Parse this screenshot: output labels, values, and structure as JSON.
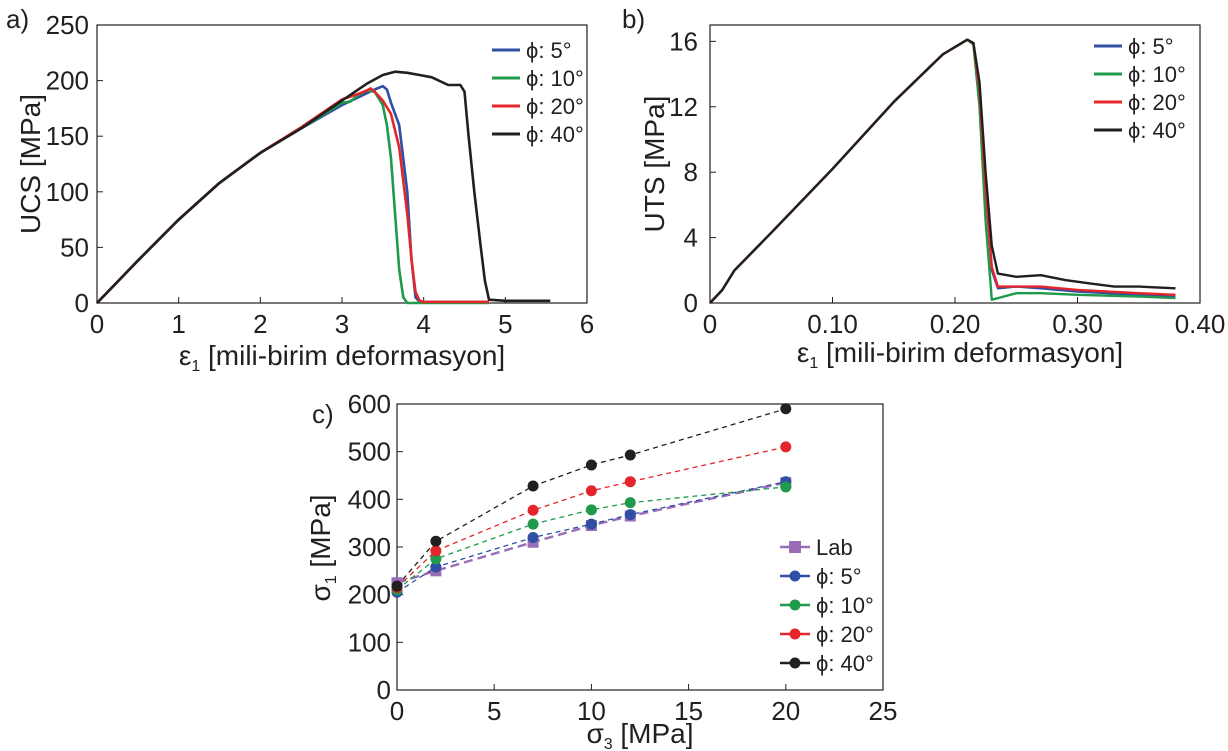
{
  "colors": {
    "phi5": "#2e4fa3",
    "phi10": "#1f9a4a",
    "phi20": "#e4262b",
    "phi40": "#231f20",
    "lab": "#9b6cb8"
  },
  "chart_data": [
    {
      "panel": "a)",
      "type": "line",
      "xlabel_pre": "ε",
      "xlabel_sub": "1",
      "xlabel_post": " [mili-birim deformasyon]",
      "ylabel": "UCS [MPa]",
      "xlim": [
        0,
        6
      ],
      "ylim": [
        0,
        250
      ],
      "xticks": [
        0,
        1,
        2,
        3,
        4,
        5,
        6
      ],
      "yticks": [
        0,
        50,
        100,
        150,
        200,
        250
      ],
      "legend_placement": "top-right",
      "series": [
        {
          "name": "ϕ: 5°",
          "color": "#2e4fa3",
          "x": [
            0,
            0.5,
            1,
            1.5,
            2,
            2.5,
            3,
            3.2,
            3.4,
            3.5,
            3.55,
            3.6,
            3.7,
            3.8,
            3.85,
            3.9,
            3.95,
            4.0,
            4.8
          ],
          "y": [
            0,
            38,
            75,
            108,
            135,
            157,
            178,
            185,
            192,
            195,
            192,
            180,
            160,
            100,
            40,
            5,
            1,
            1,
            1
          ]
        },
        {
          "name": "ϕ: 10°",
          "color": "#1f9a4a",
          "x": [
            0,
            0.5,
            1,
            1.5,
            2,
            2.5,
            3,
            3.1,
            3.2,
            3.3,
            3.4,
            3.5,
            3.55,
            3.6,
            3.65,
            3.7,
            3.75,
            3.8,
            4.8
          ],
          "y": [
            0,
            38,
            75,
            108,
            135,
            157,
            180,
            181,
            187,
            191,
            190,
            178,
            160,
            130,
            80,
            30,
            5,
            0,
            0
          ]
        },
        {
          "name": "ϕ: 20°",
          "color": "#e4262b",
          "x": [
            0,
            0.5,
            1,
            1.5,
            2,
            2.5,
            3,
            3.2,
            3.3,
            3.35,
            3.4,
            3.5,
            3.6,
            3.7,
            3.8,
            3.85,
            3.9,
            3.95,
            4.0,
            4.8
          ],
          "y": [
            0,
            38,
            75,
            108,
            135,
            158,
            183,
            188,
            191,
            193,
            190,
            182,
            170,
            140,
            80,
            40,
            10,
            2,
            1,
            1
          ]
        },
        {
          "name": "ϕ: 40°",
          "color": "#231f20",
          "x": [
            0,
            0.5,
            1,
            1.5,
            2,
            2.5,
            3,
            3.3,
            3.5,
            3.65,
            3.8,
            3.95,
            4.1,
            4.3,
            4.45,
            4.5,
            4.55,
            4.62,
            4.7,
            4.75,
            4.8,
            5.0,
            5.55
          ],
          "y": [
            0,
            38,
            75,
            108,
            135,
            157,
            182,
            197,
            205,
            208,
            207,
            205,
            203,
            196,
            196,
            190,
            150,
            100,
            50,
            20,
            3,
            2,
            2
          ]
        }
      ]
    },
    {
      "panel": "b)",
      "type": "line",
      "xlabel_pre": "ε",
      "xlabel_sub": "1",
      "xlabel_post": " [mili-birim deformasyon]",
      "ylabel": "UTS [MPa]",
      "xlim": [
        0,
        0.4
      ],
      "ylim": [
        0,
        17
      ],
      "xticks": [
        0,
        0.1,
        0.2,
        0.3,
        0.4
      ],
      "xticklabels": [
        "0",
        "0.10",
        "0.20",
        "0.30",
        "0.40"
      ],
      "yticks": [
        0,
        4,
        8,
        12,
        16
      ],
      "legend_placement": "top-right",
      "series": [
        {
          "name": "ϕ: 5°",
          "color": "#2e4fa3",
          "x": [
            0,
            0.01,
            0.02,
            0.05,
            0.1,
            0.15,
            0.19,
            0.21,
            0.215,
            0.22,
            0.225,
            0.23,
            0.235,
            0.25,
            0.27,
            0.3,
            0.35,
            0.38
          ],
          "y": [
            0,
            0.8,
            2.0,
            4.3,
            8.2,
            12.3,
            15.2,
            16.1,
            15.9,
            13,
            7,
            2.0,
            0.9,
            1.0,
            0.9,
            0.7,
            0.5,
            0.4
          ]
        },
        {
          "name": "ϕ: 10°",
          "color": "#1f9a4a",
          "x": [
            0,
            0.01,
            0.02,
            0.05,
            0.1,
            0.15,
            0.19,
            0.21,
            0.215,
            0.22,
            0.225,
            0.23,
            0.235,
            0.25,
            0.27,
            0.3,
            0.35,
            0.38
          ],
          "y": [
            0,
            0.8,
            2.0,
            4.3,
            8.2,
            12.3,
            15.2,
            16.1,
            15.8,
            12,
            5,
            0.2,
            0.3,
            0.6,
            0.6,
            0.5,
            0.4,
            0.3
          ]
        },
        {
          "name": "ϕ: 20°",
          "color": "#e4262b",
          "x": [
            0,
            0.01,
            0.02,
            0.05,
            0.1,
            0.15,
            0.19,
            0.21,
            0.215,
            0.22,
            0.225,
            0.23,
            0.235,
            0.25,
            0.27,
            0.3,
            0.35,
            0.38
          ],
          "y": [
            0,
            0.8,
            2.0,
            4.3,
            8.2,
            12.3,
            15.2,
            16.1,
            15.9,
            13,
            7,
            2.2,
            1.0,
            1.0,
            1.0,
            0.8,
            0.6,
            0.5
          ]
        },
        {
          "name": "ϕ: 40°",
          "color": "#231f20",
          "x": [
            0,
            0.01,
            0.02,
            0.05,
            0.1,
            0.15,
            0.19,
            0.21,
            0.215,
            0.22,
            0.225,
            0.23,
            0.235,
            0.25,
            0.27,
            0.29,
            0.31,
            0.33,
            0.35,
            0.38
          ],
          "y": [
            0,
            0.8,
            2.0,
            4.3,
            8.2,
            12.3,
            15.2,
            16.1,
            15.9,
            13.5,
            8,
            3.5,
            1.8,
            1.6,
            1.7,
            1.4,
            1.2,
            1.0,
            1.0,
            0.9
          ]
        }
      ]
    },
    {
      "panel": "c)",
      "type": "line",
      "xlabel_pre": "σ",
      "xlabel_sub": "3",
      "xlabel_post": " [MPa]",
      "ylabel_pre": "σ",
      "ylabel_sub": "1",
      "ylabel_post": " [MPa]",
      "xlim": [
        0,
        25
      ],
      "ylim": [
        0,
        600
      ],
      "xticks": [
        0,
        5,
        10,
        15,
        20,
        25
      ],
      "yticks": [
        0,
        100,
        200,
        300,
        400,
        500,
        600
      ],
      "legend_placement": "bottom-right",
      "series": [
        {
          "name": "Lab",
          "color": "#9b6cb8",
          "marker": "square",
          "x": [
            0,
            2,
            7,
            10,
            12,
            20
          ],
          "y": [
            225,
            250,
            310,
            345,
            365,
            435
          ]
        },
        {
          "name": "ϕ: 5°",
          "color": "#2e4fa3",
          "marker": "circle",
          "x": [
            0,
            2,
            7,
            10,
            12,
            20
          ],
          "y": [
            205,
            258,
            320,
            348,
            368,
            437
          ]
        },
        {
          "name": "ϕ: 10°",
          "color": "#1f9a4a",
          "marker": "circle",
          "x": [
            0,
            2,
            7,
            10,
            12,
            20
          ],
          "y": [
            210,
            275,
            348,
            378,
            393,
            426
          ]
        },
        {
          "name": "ϕ: 20°",
          "color": "#e4262b",
          "marker": "circle",
          "x": [
            0,
            2,
            7,
            10,
            12,
            20
          ],
          "y": [
            215,
            292,
            377,
            418,
            437,
            510
          ]
        },
        {
          "name": "ϕ: 40°",
          "color": "#231f20",
          "marker": "circle",
          "x": [
            0,
            2,
            7,
            10,
            12,
            20
          ],
          "y": [
            218,
            312,
            428,
            472,
            493,
            590
          ]
        }
      ]
    }
  ]
}
